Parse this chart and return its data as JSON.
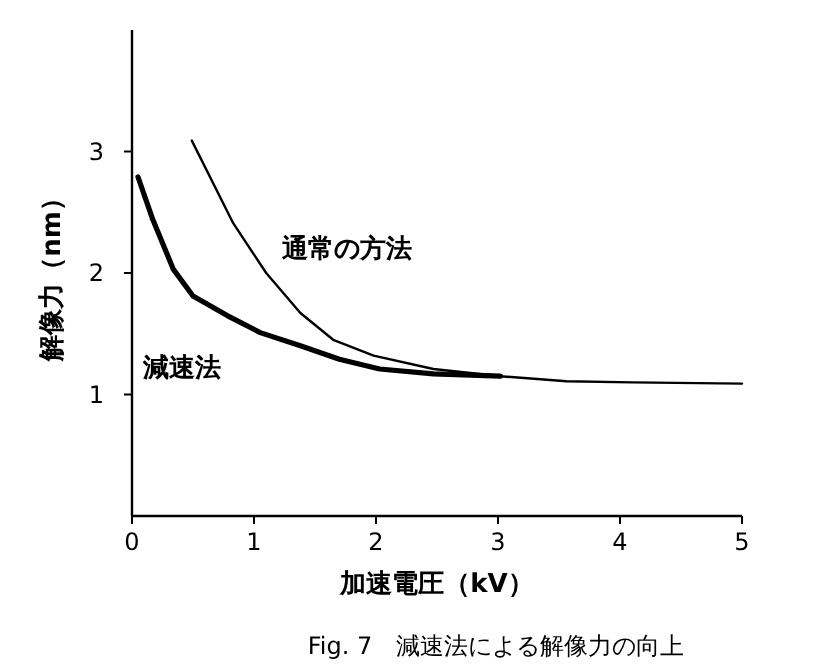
{
  "chart_data": {
    "type": "line",
    "xlabel": "加速電圧（kV）",
    "ylabel": "解像力（nm）",
    "xlim": [
      0,
      5
    ],
    "ylim": [
      0,
      4
    ],
    "xticks": [
      0,
      1,
      2,
      3,
      4,
      5
    ],
    "yticks": [
      1,
      2,
      3
    ],
    "grid": false,
    "marker": "none",
    "line_style": "solid",
    "series": [
      {
        "name": "通常の方法",
        "color": "#000000",
        "x": [
          0.49,
          0.83,
          1.1,
          1.38,
          1.65,
          1.98,
          2.47,
          3.02,
          3.56,
          4.1,
          5
        ],
        "values": [
          3.09,
          2.41,
          2.0,
          1.67,
          1.45,
          1.32,
          1.21,
          1.15,
          1.11,
          1.1,
          1.09
        ]
      },
      {
        "name": "減速法",
        "color": "#000000",
        "x": [
          0.05,
          0.17,
          0.34,
          0.5,
          0.78,
          1.05,
          1.38,
          1.7,
          2.03,
          2.47,
          3.02
        ],
        "values": [
          2.79,
          2.44,
          2.03,
          1.81,
          1.65,
          1.51,
          1.4,
          1.29,
          1.21,
          1.17,
          1.15
        ]
      }
    ],
    "annotations": [
      "Fig. 7　減速法による解像力の向上"
    ]
  }
}
